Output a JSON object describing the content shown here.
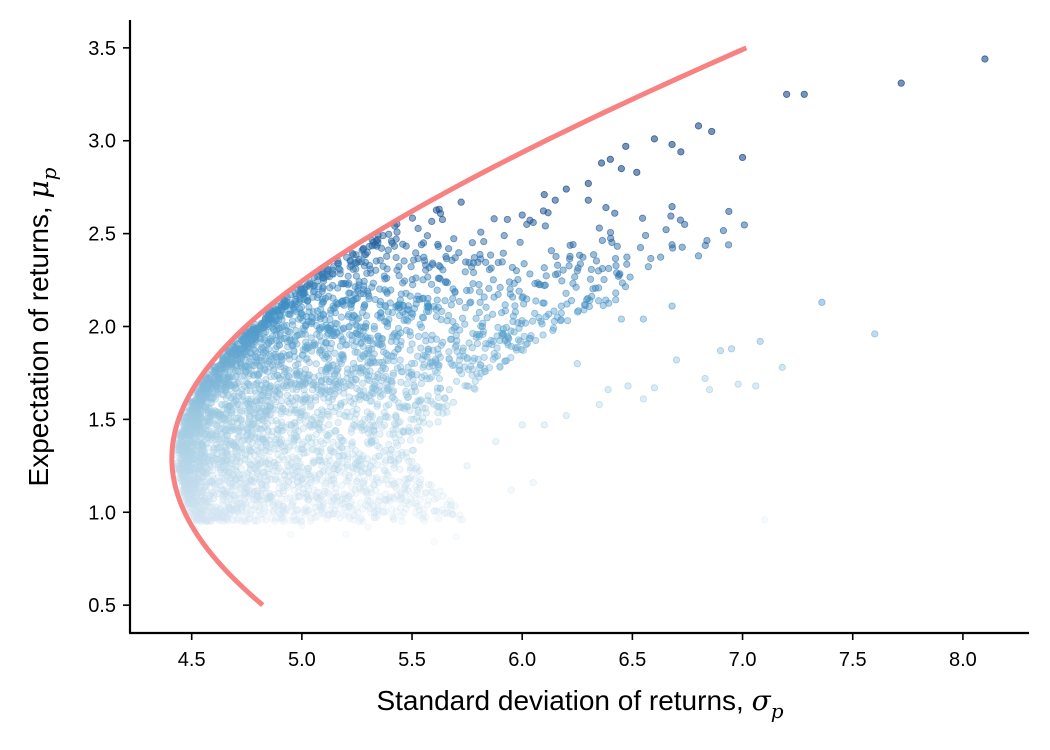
{
  "chart_data": {
    "type": "scatter",
    "xlabel": "Standard deviation of returns, ",
    "xlabel_symbol": "σ",
    "xlabel_subscript": "p",
    "ylabel": "Expectation of returns, ",
    "ylabel_symbol": "μ",
    "ylabel_subscript": "p",
    "xlim": [
      4.22,
      8.3
    ],
    "ylim": [
      0.35,
      3.65
    ],
    "xticks": [
      "4.5",
      "5.0",
      "5.5",
      "6.0",
      "6.5",
      "7.0",
      "7.5",
      "8.0"
    ],
    "yticks": [
      "0.5",
      "1.0",
      "1.5",
      "2.0",
      "2.5",
      "3.0",
      "3.5"
    ],
    "grid": false,
    "point_colormap": "Blues",
    "frontier": {
      "color": "#f87a7a",
      "min_variance_point": [
        4.41,
        1.29
      ],
      "mu_range": [
        0.5,
        3.5
      ],
      "curvature_k": 6.1
    },
    "points": [
      [
        8.1,
        3.44
      ],
      [
        7.72,
        3.31
      ],
      [
        7.2,
        3.25
      ],
      [
        7.28,
        3.25
      ],
      [
        7.0,
        2.91
      ],
      [
        6.8,
        3.08
      ],
      [
        6.86,
        3.05
      ],
      [
        6.72,
        2.94
      ],
      [
        6.68,
        2.98
      ],
      [
        6.6,
        3.01
      ],
      [
        6.47,
        2.97
      ],
      [
        6.4,
        2.9
      ],
      [
        6.36,
        2.88
      ],
      [
        6.52,
        2.83
      ],
      [
        6.45,
        2.85
      ],
      [
        6.3,
        2.77
      ],
      [
        6.2,
        2.74
      ],
      [
        6.1,
        2.71
      ],
      [
        6.0,
        2.6
      ],
      [
        6.15,
        2.68
      ],
      [
        6.3,
        2.68
      ],
      [
        6.38,
        2.64
      ],
      [
        6.42,
        2.61
      ],
      [
        6.05,
        2.56
      ],
      [
        6.56,
        2.49
      ],
      [
        6.68,
        2.44
      ],
      [
        6.8,
        2.38
      ],
      [
        6.35,
        2.53
      ],
      [
        6.25,
        2.3
      ],
      [
        6.1,
        2.22
      ],
      [
        5.9,
        2.21
      ],
      [
        5.98,
        2.02
      ],
      [
        7.36,
        2.13
      ],
      [
        6.68,
        2.11
      ],
      [
        6.28,
        2.09
      ],
      [
        6.45,
        2.04
      ],
      [
        6.55,
        2.04
      ],
      [
        7.6,
        1.96
      ],
      [
        7.08,
        1.92
      ],
      [
        6.95,
        1.88
      ],
      [
        6.9,
        1.87
      ],
      [
        6.7,
        1.82
      ],
      [
        7.18,
        1.78
      ],
      [
        6.25,
        1.8
      ],
      [
        6.83,
        1.72
      ],
      [
        6.98,
        1.69
      ],
      [
        7.06,
        1.68
      ],
      [
        6.6,
        1.67
      ],
      [
        6.48,
        1.68
      ],
      [
        6.39,
        1.66
      ],
      [
        6.55,
        1.61
      ],
      [
        6.35,
        1.58
      ],
      [
        6.2,
        1.52
      ],
      [
        6.1,
        1.47
      ],
      [
        6.85,
        1.66
      ],
      [
        7.1,
        0.96
      ],
      [
        6.0,
        1.47
      ],
      [
        5.88,
        1.38
      ],
      [
        5.75,
        1.25
      ],
      [
        6.05,
        1.16
      ],
      [
        5.95,
        1.12
      ],
      [
        5.45,
        0.98
      ],
      [
        5.3,
        0.92
      ],
      [
        5.2,
        0.88
      ],
      [
        5.7,
        0.87
      ],
      [
        5.6,
        0.84
      ],
      [
        5.0,
        0.93
      ],
      [
        4.95,
        0.88
      ],
      [
        5.4,
        1.06
      ],
      [
        5.1,
        1.0
      ],
      [
        4.75,
        0.95
      ],
      [
        4.7,
        1.0
      ]
    ]
  }
}
